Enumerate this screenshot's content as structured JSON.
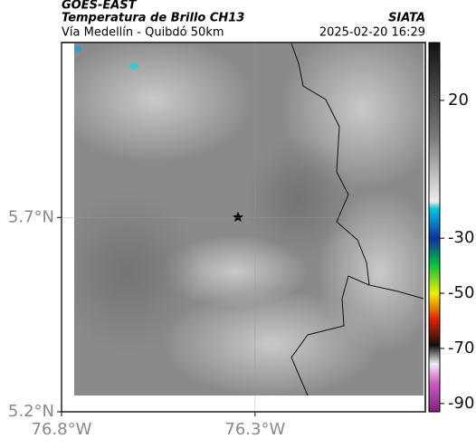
{
  "header": {
    "source": "GOES-EAST",
    "title": "Temperatura de Brillo CH13",
    "brand": "SIATA",
    "route": "Vía Medellín - Quibdó 50km",
    "datetime": "2025-02-20 16:29"
  },
  "map": {
    "xlim": [
      -76.8,
      -75.86
    ],
    "ylim": [
      5.2,
      6.15
    ],
    "xticks": [
      {
        "value": -76.8,
        "label": "76.8°W"
      },
      {
        "value": -76.3,
        "label": "76.3°W"
      }
    ],
    "yticks": [
      {
        "value": 5.2,
        "label": "5.2°N"
      },
      {
        "value": 5.7,
        "label": "5.7°N"
      }
    ],
    "grid": true
  },
  "colorbar": {
    "clim": [
      -93,
      41
    ],
    "ticks": [
      20,
      -30,
      -50,
      -70,
      -90
    ]
  }
}
